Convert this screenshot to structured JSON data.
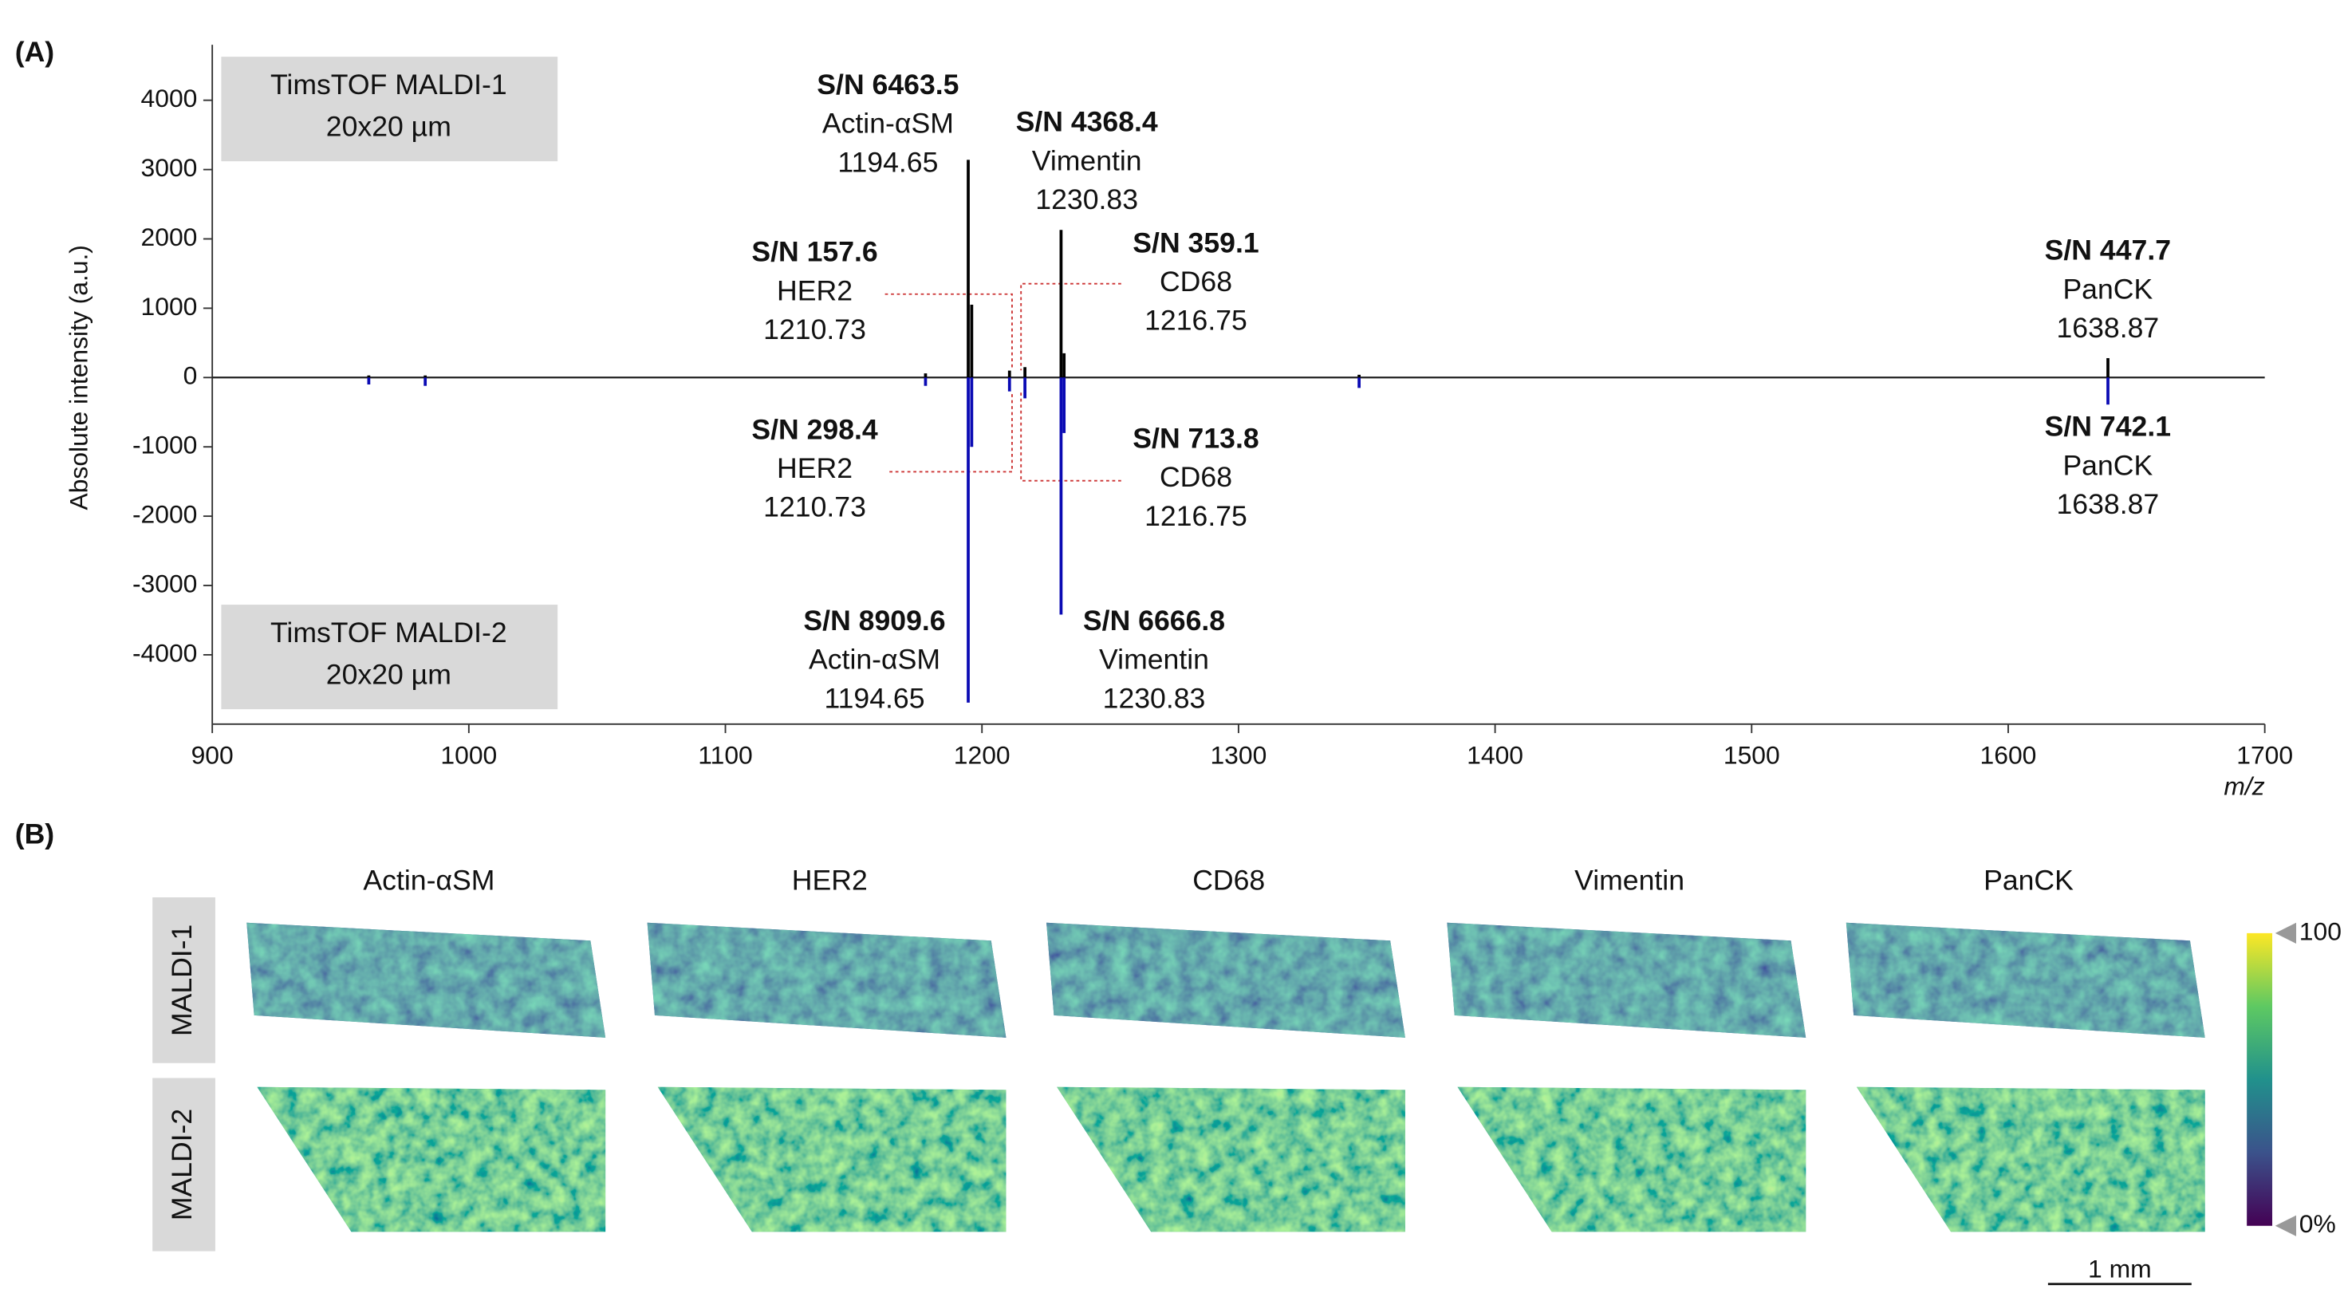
{
  "panel_labels": [
    "(A)",
    "(B)"
  ],
  "chart_data": {
    "type": "stem",
    "x_label": "m/z",
    "y_label": "Absolute intensity (a.u.)",
    "xlim": [
      900,
      1700
    ],
    "xticks": [
      900,
      1000,
      1100,
      1200,
      1300,
      1400,
      1500,
      1600,
      1700
    ],
    "ylim": [
      -5000,
      4800
    ],
    "yticks": [
      -4000,
      -3000,
      -2000,
      -1000,
      0,
      1000,
      2000,
      3000,
      4000
    ],
    "series": [
      {
        "name": "TimsTOF MALDI-1",
        "resolution": "20x20 µm",
        "color": "#000000",
        "x": [
          961,
          983,
          1178,
          1194.65,
          1196,
          1210.73,
          1216.75,
          1230.83,
          1232,
          1347,
          1638.87
        ],
        "values": [
          30,
          30,
          60,
          3140,
          1050,
          100,
          150,
          2130,
          350,
          40,
          280
        ]
      },
      {
        "name": "TimsTOF MALDI-2",
        "resolution": "20x20 µm",
        "color": "#0a0ab4",
        "x": [
          961,
          983,
          1178,
          1194.65,
          1196,
          1210.73,
          1216.75,
          1230.83,
          1232,
          1347,
          1638.87
        ],
        "values": [
          -100,
          -120,
          -120,
          -4690,
          -1000,
          -200,
          -300,
          -3420,
          -800,
          -150,
          -390
        ]
      }
    ],
    "annotations": [
      {
        "sn": "S/N 6463.5",
        "label": "Actin-αSM",
        "mz": 1194.65
      },
      {
        "sn": "S/N 4368.4",
        "label": "Vimentin",
        "mz": 1230.83
      },
      {
        "sn": "S/N 157.6",
        "label": "HER2",
        "mz": 1210.73
      },
      {
        "sn": "S/N 359.1",
        "label": "CD68",
        "mz": 1216.75
      },
      {
        "sn": "S/N 447.7",
        "label": "PanCK",
        "mz": 1638.87
      },
      {
        "sn": "S/N 298.4",
        "label": "HER2",
        "mz": 1210.73
      },
      {
        "sn": "S/N 713.8",
        "label": "CD68",
        "mz": 1216.75
      },
      {
        "sn": "S/N 742.1",
        "label": "PanCK",
        "mz": 1638.87
      },
      {
        "sn": "S/N 8909.6",
        "label": "Actin-αSM",
        "mz": 1194.65
      },
      {
        "sn": "S/N 6666.8",
        "label": "Vimentin",
        "mz": 1230.83
      }
    ]
  },
  "image_panel": {
    "columns": [
      "Actin-αSM",
      "HER2",
      "CD68",
      "Vimentin",
      "PanCK"
    ],
    "rows": [
      "MALDI-1",
      "MALDI-2"
    ],
    "colorbar": {
      "max_label": "100",
      "min_label": "0%"
    },
    "scale_bar": "1 mm"
  }
}
